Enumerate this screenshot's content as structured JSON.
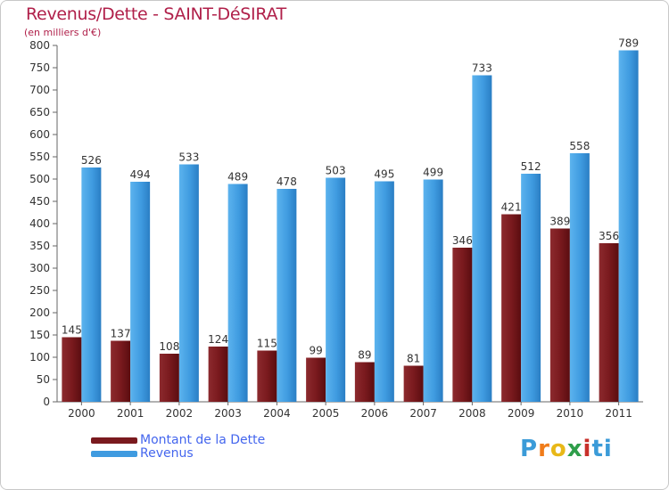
{
  "chart_data": {
    "type": "bar",
    "title": "Revenus/Dette - SAINT-DéSIRAT",
    "subtitle": "(en milliers d'€)",
    "categories": [
      "2000",
      "2001",
      "2002",
      "2003",
      "2004",
      "2005",
      "2006",
      "2007",
      "2008",
      "2009",
      "2010",
      "2011"
    ],
    "series": [
      {
        "name": "Montant de la Dette",
        "color": "#7a1a1e",
        "values": [
          145,
          137,
          108,
          124,
          115,
          99,
          89,
          81,
          346,
          421,
          389,
          356
        ]
      },
      {
        "name": "Revenus",
        "color": "#3f9be0",
        "values": [
          526,
          494,
          533,
          489,
          478,
          503,
          495,
          499,
          733,
          512,
          558,
          789
        ]
      }
    ],
    "y_ticks": [
      0,
      50,
      100,
      150,
      200,
      250,
      300,
      350,
      400,
      450,
      500,
      550,
      600,
      650,
      700,
      750,
      800
    ],
    "ylim": [
      0,
      800
    ],
    "grid": false,
    "legend_position": "bottom-left"
  },
  "logo": {
    "text": "Proxiti",
    "letters": [
      "P",
      "r",
      "o",
      "x",
      "i",
      "ti"
    ]
  }
}
